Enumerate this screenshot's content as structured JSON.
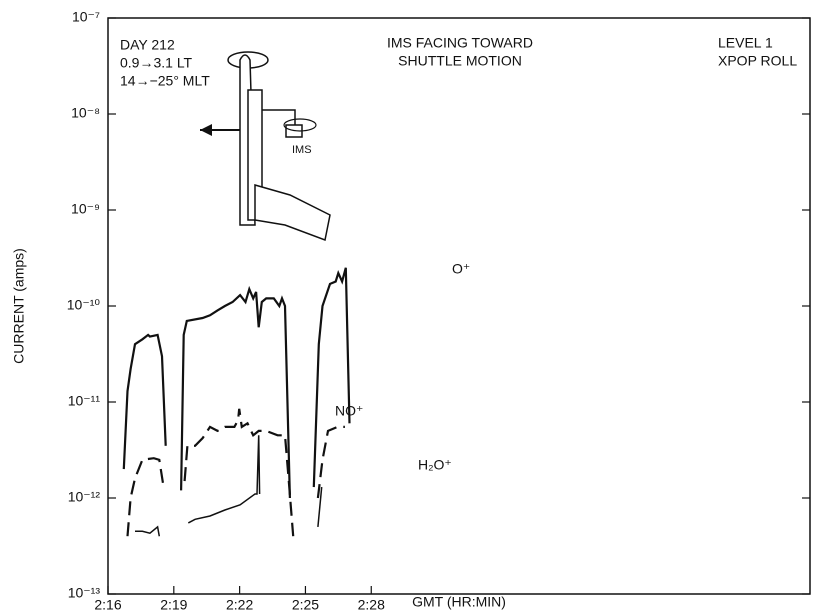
{
  "chart_data": {
    "type": "line",
    "xlabel": "GMT (HR:MIN)",
    "ylabel": "CURRENT (amps)",
    "log_y": true,
    "grid": false,
    "xlim": [
      136,
      168
    ],
    "xticks": [
      {
        "value": 136,
        "label": "2:16"
      },
      {
        "value": 139,
        "label": "2:19"
      },
      {
        "value": 142,
        "label": "2:22"
      },
      {
        "value": 145,
        "label": "2:25"
      },
      {
        "value": 148,
        "label": "2:28"
      }
    ],
    "ylim": [
      1e-13,
      1e-07
    ],
    "yticks": [
      {
        "value": 1e-13,
        "label": "10⁻¹³"
      },
      {
        "value": 1e-12,
        "label": "10⁻¹²"
      },
      {
        "value": 1e-11,
        "label": "10⁻¹¹"
      },
      {
        "value": 1e-10,
        "label": "10⁻¹⁰"
      },
      {
        "value": 1e-09,
        "label": "10⁻⁹"
      },
      {
        "value": 1e-08,
        "label": "10⁻⁸"
      },
      {
        "value": 1e-07,
        "label": "10⁻⁷"
      }
    ],
    "annotations": [
      "DAY 212",
      "0.9→3.1 LT",
      "14→−25° MLT",
      "IMS FACING TOWARD",
      "SHUTTLE MOTION",
      "LEVEL 1",
      "XPOP ROLL",
      "IMS"
    ],
    "series": [
      {
        "name": "O⁺",
        "color": "#111111",
        "dash": false,
        "x": [
          136.72,
          136.89,
          137.03,
          137.23,
          137.57,
          137.83,
          137.91,
          138.26,
          138.46,
          138.63,
          null,
          139.33,
          139.45,
          139.59,
          140.31,
          140.65,
          140.99,
          141.33,
          141.68,
          142.02,
          142.27,
          142.44,
          142.62,
          142.75,
          142.87,
          143.01,
          143.21,
          143.56,
          143.81,
          143.93,
          144.07,
          144.29,
          null,
          145.38,
          145.61,
          145.78,
          146.12,
          146.38,
          146.5,
          146.67,
          146.84,
          147.01
        ],
        "values": [
          2e-12,
          1.3e-11,
          2.2e-11,
          4e-11,
          4.5e-11,
          5e-11,
          4.8e-11,
          5e-11,
          3e-11,
          3.5e-12,
          null,
          1.2e-12,
          5e-11,
          7e-11,
          7.5e-11,
          8e-11,
          9e-11,
          1e-10,
          1.1e-10,
          1.3e-10,
          1.1e-10,
          1.5e-10,
          1.2e-10,
          1.4e-10,
          6e-11,
          1.1e-10,
          1.2e-10,
          1.2e-10,
          1e-10,
          1.2e-10,
          1e-10,
          1e-12,
          null,
          1.3e-12,
          4e-11,
          1e-10,
          1.7e-10,
          1.8e-10,
          2.2e-10,
          1.8e-10,
          2.5e-10,
          6e-12
        ]
      },
      {
        "name": "NO⁺",
        "color": "#111111",
        "dash": true,
        "x": [
          136.89,
          137.03,
          137.23,
          137.57,
          138.09,
          138.34,
          138.51,
          null,
          139.49,
          139.62,
          139.97,
          140.31,
          140.65,
          140.99,
          141.33,
          141.76,
          141.93,
          141.98,
          142.1,
          142.36,
          142.62,
          142.87,
          143.21,
          143.73,
          144.07,
          144.24,
          144.44,
          null,
          145.57,
          145.78,
          146.03,
          146.46,
          146.8
        ],
        "values": [
          4e-13,
          1e-12,
          1.6e-12,
          2.5e-12,
          2.6e-12,
          2.5e-12,
          1.4e-12,
          null,
          1.5e-12,
          3.5e-12,
          3.5e-12,
          4.2e-12,
          5.5e-12,
          5e-12,
          5.5e-12,
          5.5e-12,
          6.5e-12,
          8.5e-12,
          5.5e-12,
          6e-12,
          4.5e-12,
          5e-12,
          5e-12,
          4.5e-12,
          4.5e-12,
          1.5e-12,
          4e-13,
          null,
          1e-12,
          2.5e-12,
          5e-12,
          5.5e-12,
          5.5e-12
        ]
      },
      {
        "name": "H₂O⁺",
        "color": "#111111",
        "dash": false,
        "x": [
          137.23,
          137.57,
          137.91,
          138.26,
          138.34,
          null,
          139.66,
          139.97,
          140.65,
          141.33,
          142.02,
          142.7,
          142.79,
          142.87,
          142.91,
          null,
          145.57,
          145.74
        ],
        "values": [
          4.5e-13,
          4.5e-13,
          4.3e-13,
          5e-13,
          4e-13,
          null,
          5.5e-13,
          6e-13,
          6.5e-13,
          7.5e-13,
          8.5e-13,
          1.1e-12,
          1.1e-12,
          4.5e-12,
          1.1e-12,
          null,
          5e-13,
          1.3e-12
        ]
      }
    ]
  }
}
